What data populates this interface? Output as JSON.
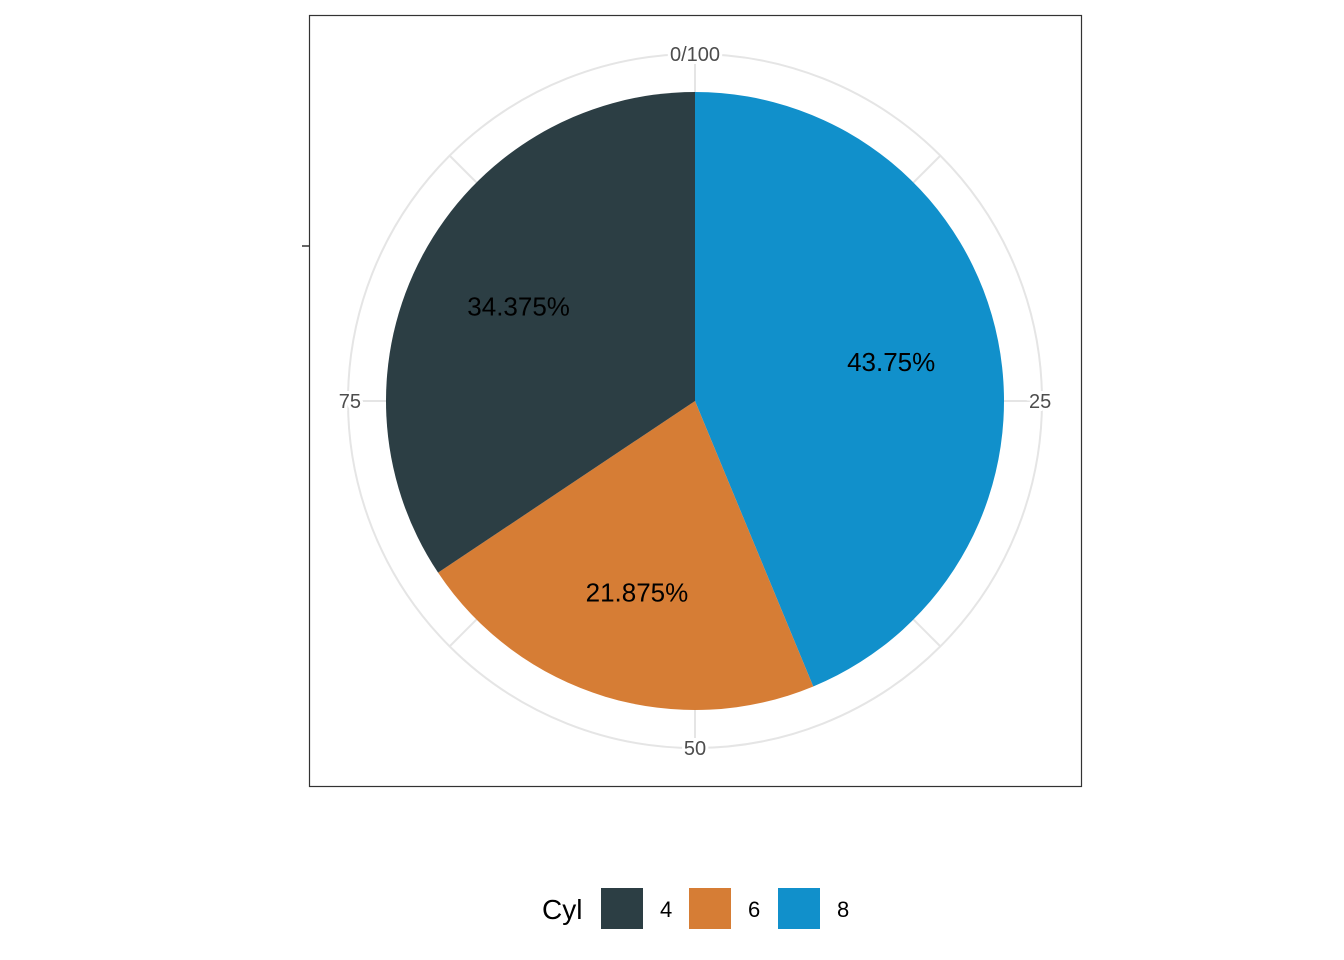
{
  "chart_data": {
    "type": "pie",
    "categories": [
      "4",
      "6",
      "8"
    ],
    "values": [
      34.375,
      21.875,
      43.75
    ],
    "labels": [
      "34.375%",
      "21.875%",
      "43.75%"
    ],
    "colors": [
      "#2c3e44",
      "#d67d35",
      "#1190cb"
    ],
    "angle_axis": {
      "range": [
        0,
        100
      ],
      "ticks": [
        {
          "value": 0,
          "label": "0/100"
        },
        {
          "value": 25,
          "label": "25"
        },
        {
          "value": 50,
          "label": "50"
        },
        {
          "value": 75,
          "label": "75"
        }
      ]
    },
    "direction": "clockwise",
    "slice_order": [
      "8",
      "6",
      "4"
    ],
    "grid": true,
    "legend": {
      "title": "Cyl",
      "position": "bottom",
      "entries": [
        "4",
        "6",
        "8"
      ]
    }
  }
}
